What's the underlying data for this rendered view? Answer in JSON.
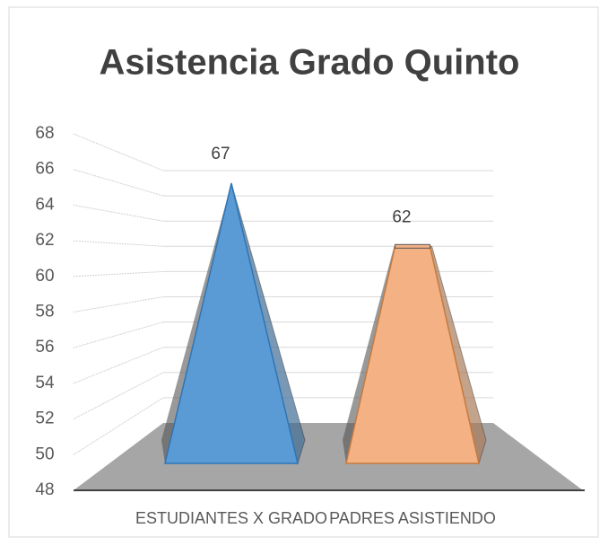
{
  "chart_data": {
    "type": "bar",
    "title": "Asistencia Grado Quinto",
    "categories": [
      "ESTUDIANTES X GRADO",
      "PADRES ASISTIENDO"
    ],
    "values": [
      67,
      62
    ],
    "colors": [
      "#5b9bd5",
      "#f4b183"
    ],
    "ylim": [
      48,
      68
    ],
    "yticks": [
      48,
      50,
      52,
      54,
      56,
      58,
      60,
      62,
      64,
      66,
      68
    ],
    "grid": true
  }
}
